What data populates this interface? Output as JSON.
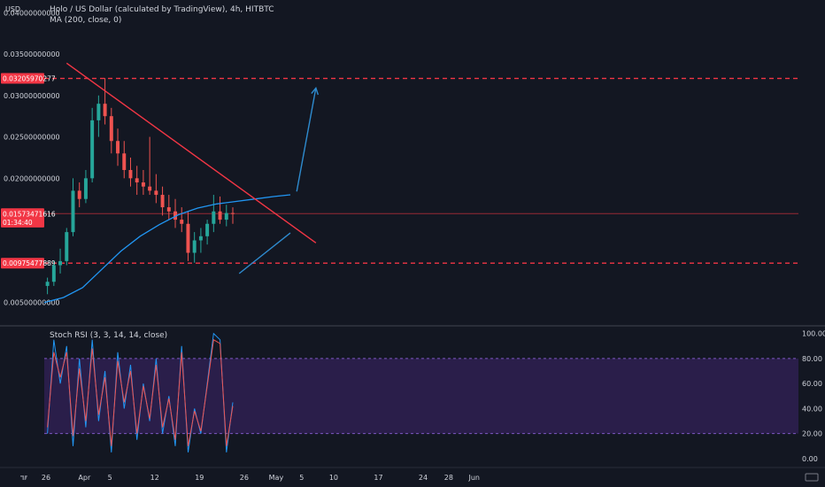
{
  "header": {
    "currency": "USD",
    "title": "Holo / US Dollar (calculated by TradingView), 4h, HITBTC",
    "ma_label": "MA (200, close, 0)",
    "stoch_label": "Stoch RSI (3, 3, 14, 14, close)"
  },
  "colors": {
    "background": "#131722",
    "up": "#26a69a",
    "down": "#ef5350",
    "trendline": "#f23645",
    "ma": "#2196f3",
    "arrow": "#2e8bcf",
    "stoch_k": "#2196f3",
    "stoch_d": "#ef5350",
    "band": "#2a1e4a"
  },
  "chart_data": [
    {
      "type": "candlestick",
      "title": "Holo / US Dollar (calculated by TradingView), 4h, HITBTC",
      "y_axis": {
        "ticks": [
          "0.04000000000",
          "0.03500000000",
          "0.03000000000",
          "0.02500000000",
          "0.02000000000",
          "0.00500000000"
        ],
        "tick_values": [
          0.04,
          0.035,
          0.03,
          0.025,
          0.02,
          0.005
        ],
        "ylim": [
          0.0025,
          0.0411
        ]
      },
      "x_axis": {
        "ticks": [
          "26",
          "Apr",
          "5",
          "12",
          "19",
          "26",
          "May",
          "5",
          "10",
          "17",
          "24",
          "28",
          "Jun"
        ]
      },
      "price_tags": [
        {
          "label": "0.03205970277",
          "value": 0.03206,
          "color": "#f23645"
        },
        {
          "label": "0.01573471616",
          "value": 0.01573,
          "color": "#f23645"
        },
        {
          "label": "01:34:40",
          "value": 0.0147,
          "color": "#f23645"
        },
        {
          "label": "0.00975477889",
          "value": 0.00975,
          "color": "#f23645"
        }
      ],
      "horizontal_levels": [
        {
          "value": 0.03206,
          "style": "dashed",
          "color": "#f23645"
        },
        {
          "value": 0.00975,
          "style": "dashed",
          "color": "#f23645"
        },
        {
          "value": 0.01573,
          "style": "solid",
          "color": "#f23645"
        }
      ],
      "trendlines": [
        {
          "from": [
            3.5,
            0.0339
          ],
          "to": [
            42.5,
            0.0122
          ],
          "color": "#f23645"
        },
        {
          "from": [
            30.5,
            0.0085
          ],
          "to": [
            38.5,
            0.0134
          ],
          "color": "#2e8bcf"
        },
        {
          "from": [
            39.5,
            0.0184
          ],
          "to": [
            42.5,
            0.0309
          ],
          "color": "#2e8bcf",
          "arrow": true
        }
      ],
      "ma_line": {
        "x": [
          0,
          3,
          6,
          9,
          12,
          15,
          18,
          21,
          24,
          27,
          30,
          33,
          36,
          38.5
        ],
        "y": [
          0.005,
          0.0056,
          0.0068,
          0.009,
          0.0112,
          0.013,
          0.0144,
          0.0156,
          0.0164,
          0.0169,
          0.0172,
          0.0175,
          0.0178,
          0.018
        ]
      },
      "candles_x_unit": "days from Mar 26",
      "candles": [
        {
          "x": 0,
          "o": 0.007,
          "h": 0.008,
          "l": 0.006,
          "c": 0.0075
        },
        {
          "x": 1,
          "o": 0.0075,
          "h": 0.01,
          "l": 0.007,
          "c": 0.0095
        },
        {
          "x": 2,
          "o": 0.0095,
          "h": 0.0115,
          "l": 0.0085,
          "c": 0.01
        },
        {
          "x": 3,
          "o": 0.01,
          "h": 0.014,
          "l": 0.0095,
          "c": 0.0135
        },
        {
          "x": 4,
          "o": 0.0135,
          "h": 0.02,
          "l": 0.013,
          "c": 0.0185
        },
        {
          "x": 5,
          "o": 0.0185,
          "h": 0.0195,
          "l": 0.0165,
          "c": 0.0175
        },
        {
          "x": 6,
          "o": 0.0175,
          "h": 0.021,
          "l": 0.017,
          "c": 0.02
        },
        {
          "x": 7,
          "o": 0.02,
          "h": 0.0285,
          "l": 0.0195,
          "c": 0.027
        },
        {
          "x": 8,
          "o": 0.027,
          "h": 0.03,
          "l": 0.025,
          "c": 0.029
        },
        {
          "x": 9,
          "o": 0.029,
          "h": 0.0321,
          "l": 0.0265,
          "c": 0.0275
        },
        {
          "x": 10,
          "o": 0.0275,
          "h": 0.0285,
          "l": 0.023,
          "c": 0.0245
        },
        {
          "x": 11,
          "o": 0.0245,
          "h": 0.026,
          "l": 0.0215,
          "c": 0.023
        },
        {
          "x": 12,
          "o": 0.023,
          "h": 0.0245,
          "l": 0.02,
          "c": 0.021
        },
        {
          "x": 13,
          "o": 0.021,
          "h": 0.0225,
          "l": 0.019,
          "c": 0.02
        },
        {
          "x": 14,
          "o": 0.02,
          "h": 0.0215,
          "l": 0.018,
          "c": 0.0195
        },
        {
          "x": 15,
          "o": 0.0195,
          "h": 0.021,
          "l": 0.018,
          "c": 0.019
        },
        {
          "x": 16,
          "o": 0.019,
          "h": 0.025,
          "l": 0.018,
          "c": 0.0185
        },
        {
          "x": 17,
          "o": 0.0185,
          "h": 0.0205,
          "l": 0.017,
          "c": 0.018
        },
        {
          "x": 18,
          "o": 0.018,
          "h": 0.019,
          "l": 0.0155,
          "c": 0.0165
        },
        {
          "x": 19,
          "o": 0.0165,
          "h": 0.018,
          "l": 0.015,
          "c": 0.016
        },
        {
          "x": 20,
          "o": 0.016,
          "h": 0.0175,
          "l": 0.014,
          "c": 0.015
        },
        {
          "x": 21,
          "o": 0.015,
          "h": 0.0165,
          "l": 0.0135,
          "c": 0.0145
        },
        {
          "x": 22,
          "o": 0.0145,
          "h": 0.016,
          "l": 0.01,
          "c": 0.011
        },
        {
          "x": 23,
          "o": 0.011,
          "h": 0.0135,
          "l": 0.0098,
          "c": 0.0125
        },
        {
          "x": 24,
          "o": 0.0125,
          "h": 0.014,
          "l": 0.011,
          "c": 0.013
        },
        {
          "x": 25,
          "o": 0.013,
          "h": 0.015,
          "l": 0.012,
          "c": 0.0145
        },
        {
          "x": 26,
          "o": 0.0145,
          "h": 0.018,
          "l": 0.0135,
          "c": 0.016
        },
        {
          "x": 27,
          "o": 0.016,
          "h": 0.0178,
          "l": 0.0145,
          "c": 0.015
        },
        {
          "x": 28,
          "o": 0.015,
          "h": 0.0168,
          "l": 0.0142,
          "c": 0.0158
        },
        {
          "x": 29,
          "o": 0.0158,
          "h": 0.0165,
          "l": 0.0145,
          "c": 0.0157
        }
      ]
    },
    {
      "type": "line",
      "title": "Stoch RSI (3, 3, 14, 14, close)",
      "y_axis": {
        "ticks": [
          "100.00",
          "80.00",
          "60.00",
          "40.00",
          "20.00",
          "0.00"
        ],
        "tick_values": [
          100,
          80,
          60,
          40,
          20,
          0
        ],
        "ylim": [
          -5,
          104
        ],
        "band": [
          20,
          80
        ]
      },
      "series": [
        {
          "name": "K",
          "color": "#2196f3",
          "x": [
            0,
            1,
            2,
            3,
            4,
            5,
            6,
            7,
            8,
            9,
            10,
            11,
            12,
            13,
            14,
            15,
            16,
            17,
            18,
            19,
            20,
            21,
            22,
            23,
            24,
            25,
            26,
            27,
            28,
            29
          ],
          "y": [
            20,
            95,
            60,
            90,
            10,
            80,
            25,
            95,
            30,
            70,
            5,
            85,
            40,
            75,
            15,
            60,
            30,
            80,
            20,
            50,
            10,
            90,
            5,
            40,
            20,
            60,
            100,
            95,
            5,
            45
          ]
        },
        {
          "name": "D",
          "color": "#ef5350",
          "x": [
            0,
            1,
            2,
            3,
            4,
            5,
            6,
            7,
            8,
            9,
            10,
            11,
            12,
            13,
            14,
            15,
            16,
            17,
            18,
            19,
            20,
            21,
            22,
            23,
            24,
            25,
            26,
            27,
            28,
            29
          ],
          "y": [
            25,
            85,
            65,
            85,
            18,
            72,
            30,
            88,
            35,
            65,
            10,
            78,
            45,
            70,
            20,
            58,
            32,
            75,
            25,
            48,
            15,
            85,
            10,
            38,
            22,
            58,
            95,
            92,
            10,
            42
          ]
        }
      ]
    }
  ]
}
